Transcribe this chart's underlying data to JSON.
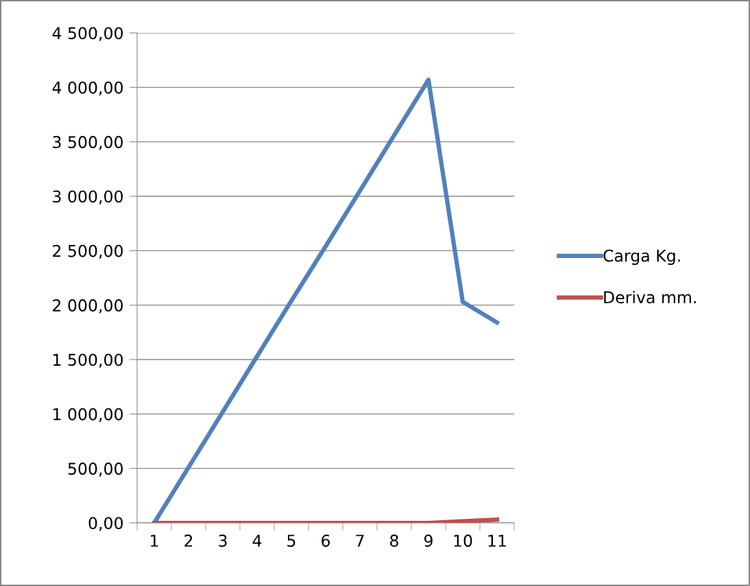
{
  "chart_data": {
    "type": "line",
    "categories": [
      "1",
      "2",
      "3",
      "4",
      "5",
      "6",
      "7",
      "8",
      "9",
      "10",
      "11"
    ],
    "series": [
      {
        "name": "Carga Kg.",
        "color": "#4f81bd",
        "values": [
          0,
          510,
          1020,
          1530,
          2040,
          2540,
          3050,
          3560,
          4070,
          2030,
          1840
        ]
      },
      {
        "name": "Deriva mm.",
        "color": "#c0504d",
        "values": [
          0,
          0,
          0,
          0,
          0,
          0,
          0,
          0,
          0,
          15,
          30
        ]
      }
    ],
    "ylim": [
      0,
      4500
    ],
    "yticks": [
      {
        "value": 0,
        "label": "0,00"
      },
      {
        "value": 500,
        "label": "500,00"
      },
      {
        "value": 1000,
        "label": "1 000,00"
      },
      {
        "value": 1500,
        "label": "1 500,00"
      },
      {
        "value": 2000,
        "label": "2 000,00"
      },
      {
        "value": 2500,
        "label": "2 500,00"
      },
      {
        "value": 3000,
        "label": "3 000,00"
      },
      {
        "value": 3500,
        "label": "3 500,00"
      },
      {
        "value": 4000,
        "label": "4 000,00"
      },
      {
        "value": 4500,
        "label": "4 500,00"
      }
    ],
    "grid": "y",
    "legend": "right",
    "marker": "none",
    "line_style": "solid"
  }
}
